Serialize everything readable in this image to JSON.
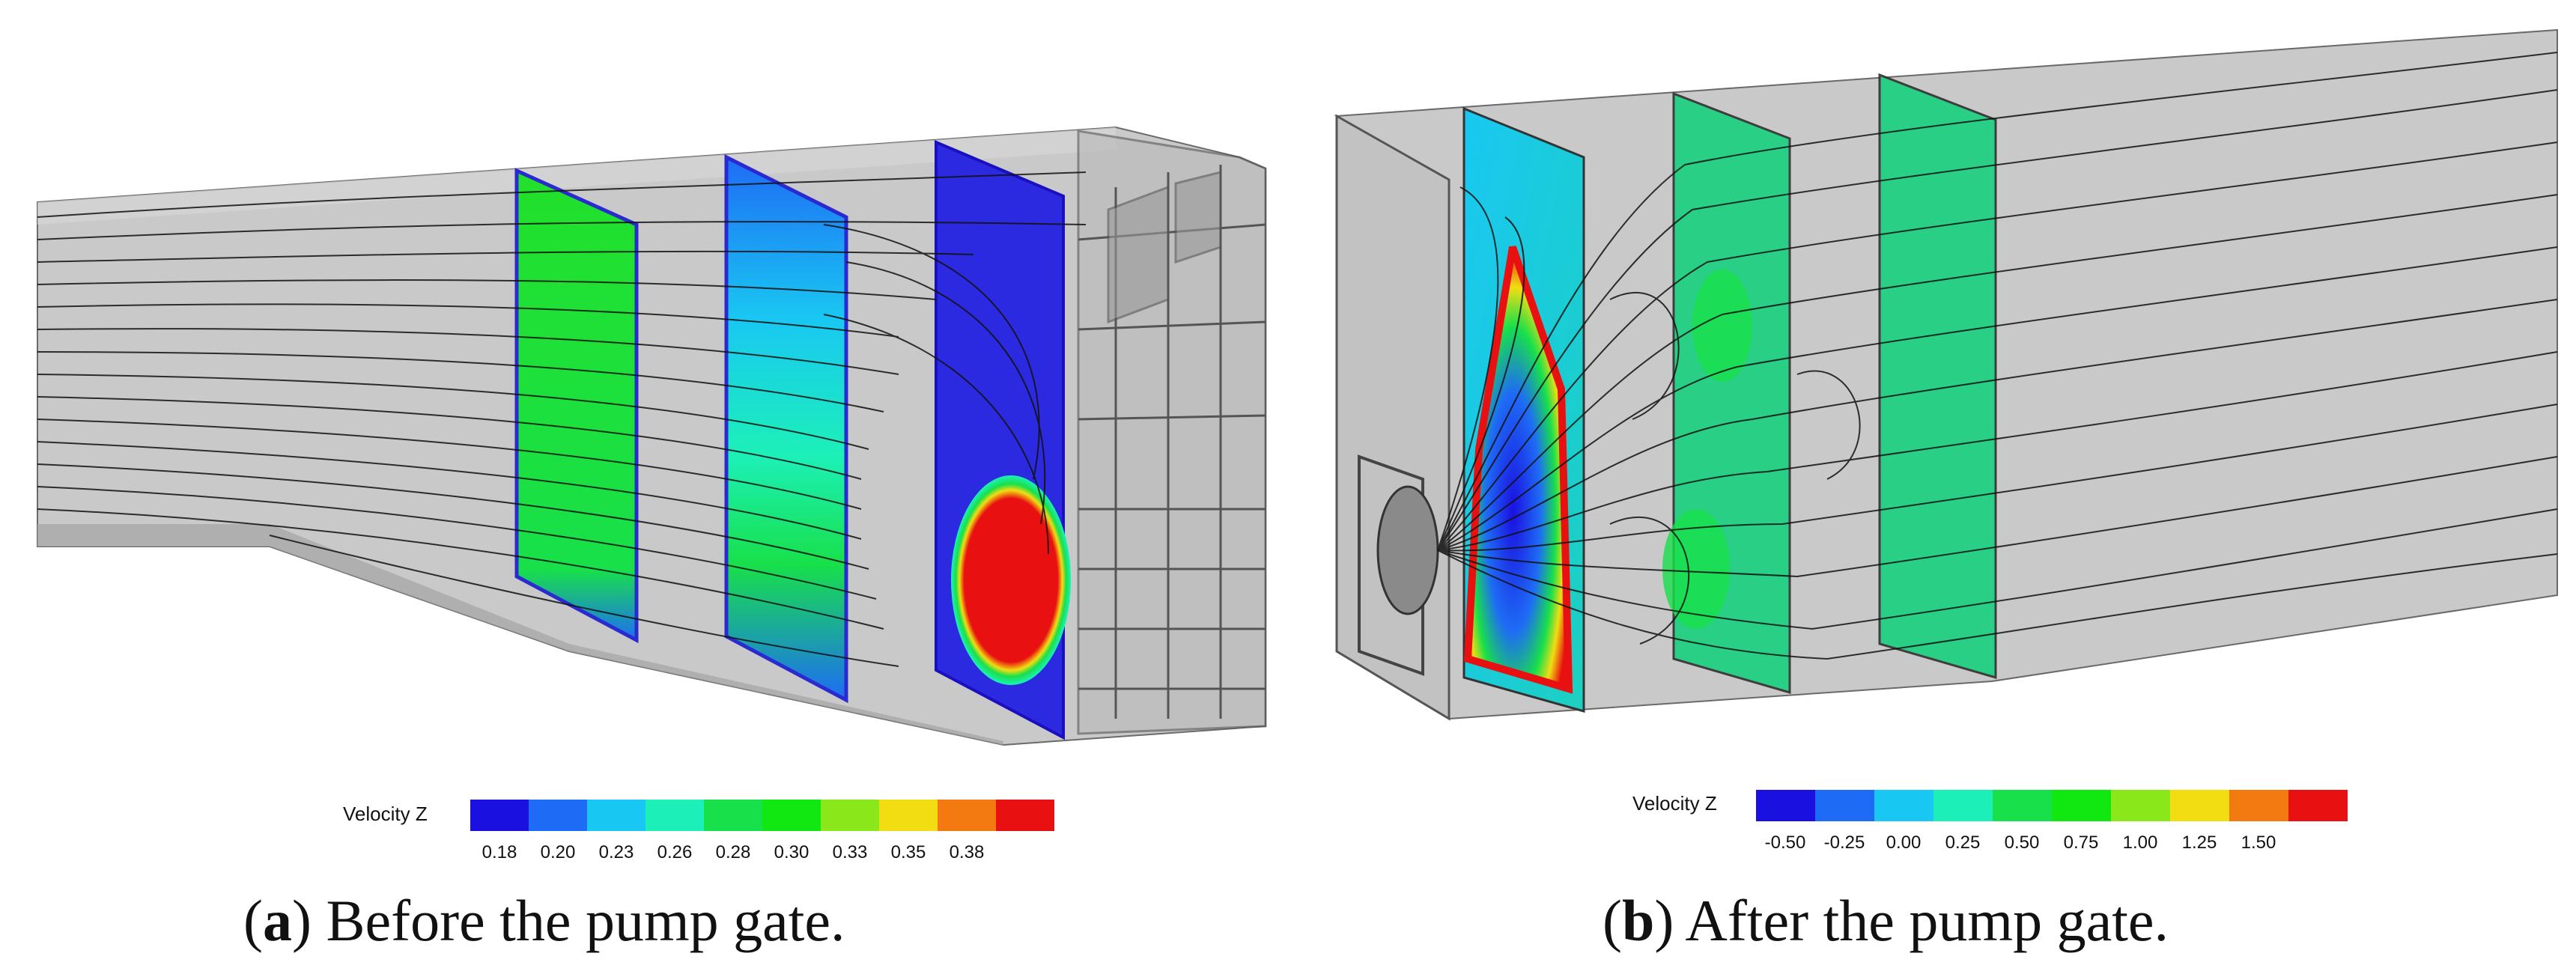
{
  "panels": [
    {
      "id": "a",
      "caption_letter": "a",
      "caption_text": "Before the pump gate.",
      "colorbar": {
        "label": "Velocity Z",
        "ticks": [
          "0.18",
          "0.20",
          "0.23",
          "0.26",
          "0.28",
          "0.30",
          "0.33",
          "0.35",
          "0.38"
        ],
        "colors": [
          "#1a10e0",
          "#1e6cf5",
          "#19c8f2",
          "#1cf0b8",
          "#18e04a",
          "#11e811",
          "#8ae81a",
          "#f2dd12",
          "#f27a10",
          "#e81010"
        ]
      }
    },
    {
      "id": "b",
      "caption_letter": "b",
      "caption_text": "After the pump gate.",
      "colorbar": {
        "label": "Velocity Z",
        "ticks": [
          "-0.50",
          "-0.25",
          "0.00",
          "0.25",
          "0.50",
          "0.75",
          "1.00",
          "1.25",
          "1.50"
        ],
        "colors": [
          "#1a10e0",
          "#1e6cf5",
          "#19c8f2",
          "#1cf0b8",
          "#18e04a",
          "#11e811",
          "#8ae81a",
          "#f2dd12",
          "#f27a10",
          "#e81010"
        ]
      }
    }
  ],
  "palette": {
    "channel_gray": "#c8c8c8",
    "channel_edge": "#6a6a6a",
    "streamline": "#111111"
  }
}
